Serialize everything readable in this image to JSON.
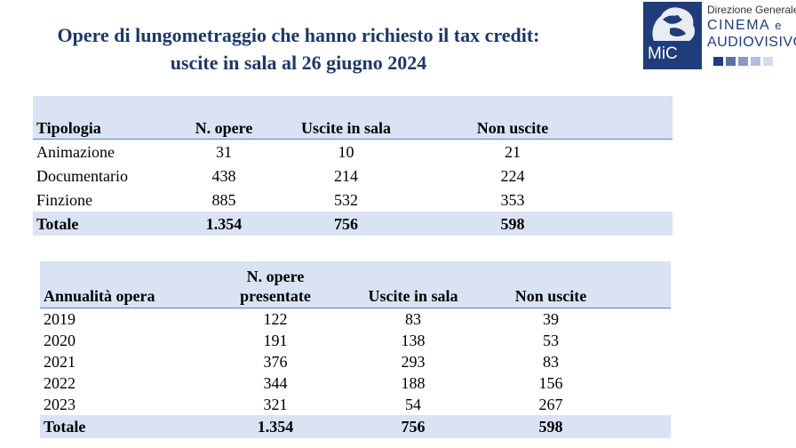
{
  "title": {
    "line1": "Opere di lungometraggio che hanno richiesto il tax credit:",
    "line2": "uscite in sala al 26 giugno 2024"
  },
  "logo": {
    "mark": "MiC",
    "line1": "Direzione Generale",
    "line2a": "CINEMA",
    "line2b": "e",
    "line3": "AUDIOVISIVO",
    "colors": [
      "#1f3d7a",
      "#5b6fa6",
      "#8a98c2",
      "#b4bdd9",
      "#d6dbea"
    ]
  },
  "table1": {
    "headers": [
      "Tipologia",
      "N. opere",
      "Uscite in sala",
      "Non uscite"
    ],
    "rows": [
      [
        "Animazione",
        "31",
        "10",
        "21"
      ],
      [
        "Documentario",
        "438",
        "214",
        "224"
      ],
      [
        "Finzione",
        "885",
        "532",
        "353"
      ]
    ],
    "total": [
      "Totale",
      "1.354",
      "756",
      "598"
    ]
  },
  "table2": {
    "headers": [
      "Annualità opera",
      "N. opere",
      "presentate",
      "Uscite in sala",
      "Non uscite"
    ],
    "rows": [
      [
        "2019",
        "122",
        "83",
        "39"
      ],
      [
        "2020",
        "191",
        "138",
        "53"
      ],
      [
        "2021",
        "376",
        "293",
        "83"
      ],
      [
        "2022",
        "344",
        "188",
        "156"
      ],
      [
        "2023",
        "321",
        "54",
        "267"
      ]
    ],
    "total": [
      "Totale",
      "1.354",
      "756",
      "598"
    ]
  }
}
